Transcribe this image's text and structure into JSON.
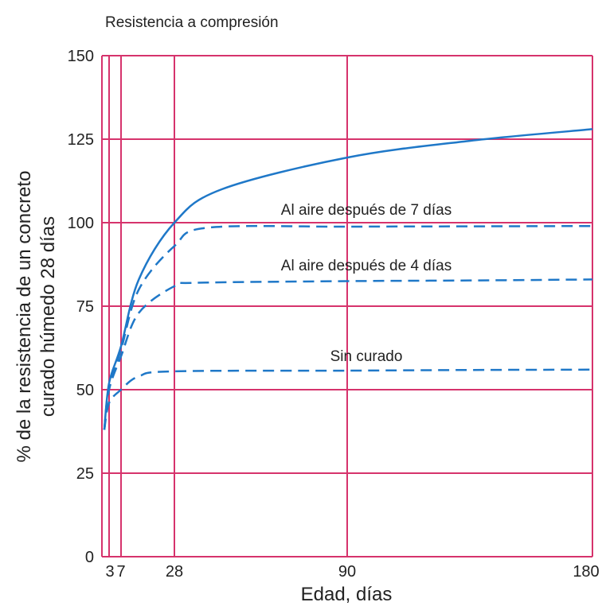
{
  "chart_data": {
    "type": "line",
    "title": "Resistencia a compresión",
    "xlabel": "Edad, días",
    "ylabel_lines": [
      "% de la resistencia de un concreto",
      "curado húmedo 28 días"
    ],
    "ylim": [
      0,
      150
    ],
    "y_ticks": [
      0,
      25,
      50,
      75,
      100,
      125,
      150
    ],
    "x_ticks": [
      "3",
      "7",
      "28",
      "90",
      "180"
    ],
    "grid": true,
    "colors": {
      "grid": "#d6336c",
      "series": "#1f78c8"
    },
    "series": [
      {
        "name": "",
        "style": "solid",
        "x": [
          1,
          3,
          7,
          14,
          28,
          45,
          90,
          135,
          180
        ],
        "y": [
          38,
          52,
          63,
          83,
          100,
          110,
          119.5,
          124.5,
          128
        ]
      },
      {
        "name": "Al aire después de 7 días",
        "style": "dashed",
        "x": [
          1,
          3,
          7,
          14,
          28,
          40,
          90,
          135,
          180
        ],
        "y": [
          38,
          51,
          62,
          80,
          93,
          98.5,
          98.8,
          98.9,
          99
        ]
      },
      {
        "name": "Al aire después de 4 días",
        "style": "dashed",
        "x": [
          1,
          3,
          7,
          14,
          28,
          36,
          90,
          135,
          180
        ],
        "y": [
          38,
          50,
          60,
          73,
          81,
          82,
          82.5,
          82.7,
          83
        ]
      },
      {
        "name": "Sin curado",
        "style": "dashed",
        "x": [
          1,
          3,
          7,
          14,
          28,
          90,
          135,
          180
        ],
        "y": [
          38,
          46,
          50,
          54,
          55.5,
          55.7,
          55.9,
          56
        ]
      }
    ]
  }
}
